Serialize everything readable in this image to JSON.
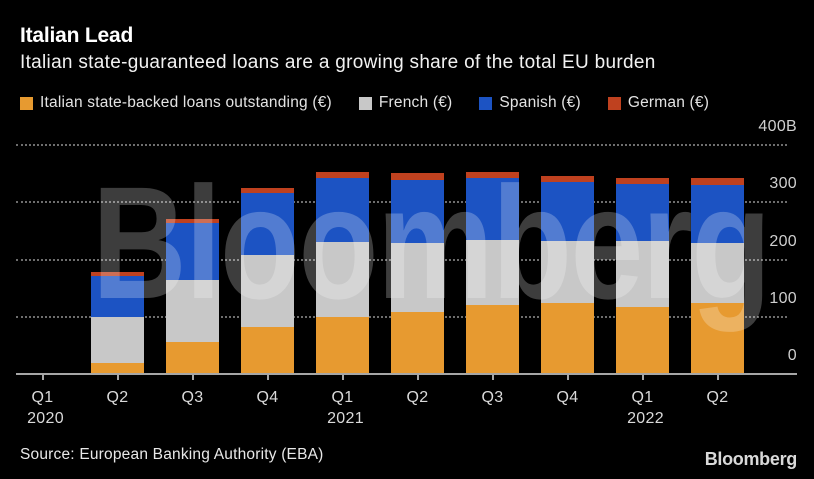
{
  "header": {
    "title": "Italian Lead",
    "subtitle": "Italian state-guaranteed loans are a growing share of the total EU burden"
  },
  "chart_data": {
    "type": "bar",
    "stacked": true,
    "title": "Italian Lead",
    "subtitle": "Italian state-guaranteed loans are a growing share of the total EU burden",
    "units": "EUR billions (B)",
    "categories": [
      "Q1 2020",
      "Q2 2020",
      "Q3 2020",
      "Q4 2020",
      "Q1 2021",
      "Q2 2021",
      "Q3 2021",
      "Q4 2021",
      "Q1 2022",
      "Q2 2022"
    ],
    "x_tick_labels": [
      "Q1",
      "Q2",
      "Q3",
      "Q4",
      "Q1",
      "Q2",
      "Q3",
      "Q4",
      "Q1",
      "Q2"
    ],
    "x_year_labels": [
      {
        "text": "2020",
        "slot": 0
      },
      {
        "text": "2021",
        "slot": 4
      },
      {
        "text": "2022",
        "slot": 8
      }
    ],
    "series": [
      {
        "name": "Italian state-backed loans outstanding (€)",
        "color": "#E79A30",
        "values": [
          0,
          18,
          54,
          80,
          98,
          106,
          119,
          122,
          116,
          122
        ]
      },
      {
        "name": "French (€)",
        "color": "#C8C8C8",
        "values": [
          0,
          79,
          108,
          126,
          131,
          121,
          113,
          108,
          114,
          105
        ]
      },
      {
        "name": "Spanish (€)",
        "color": "#1C53C3",
        "values": [
          0,
          73,
          100,
          108,
          111,
          110,
          108,
          104,
          100,
          101
        ]
      },
      {
        "name": "German (€)",
        "color": "#BF411F",
        "values": [
          0,
          6,
          7,
          9,
          11,
          12,
          11,
          10,
          10,
          12
        ]
      }
    ],
    "ylim": [
      0,
      400
    ],
    "y_tick_labels": [
      {
        "text": "400B",
        "value": 400
      },
      {
        "text": "300",
        "value": 300
      },
      {
        "text": "200",
        "value": 200
      },
      {
        "text": "100",
        "value": 100
      },
      {
        "text": "0",
        "value": 0
      }
    ],
    "grid": "horizontal dotted",
    "legend_position": "top"
  },
  "watermark": "Bloomberg",
  "footer": {
    "source": "Source: European Banking Authority (EBA)",
    "logo": "Bloomberg"
  }
}
